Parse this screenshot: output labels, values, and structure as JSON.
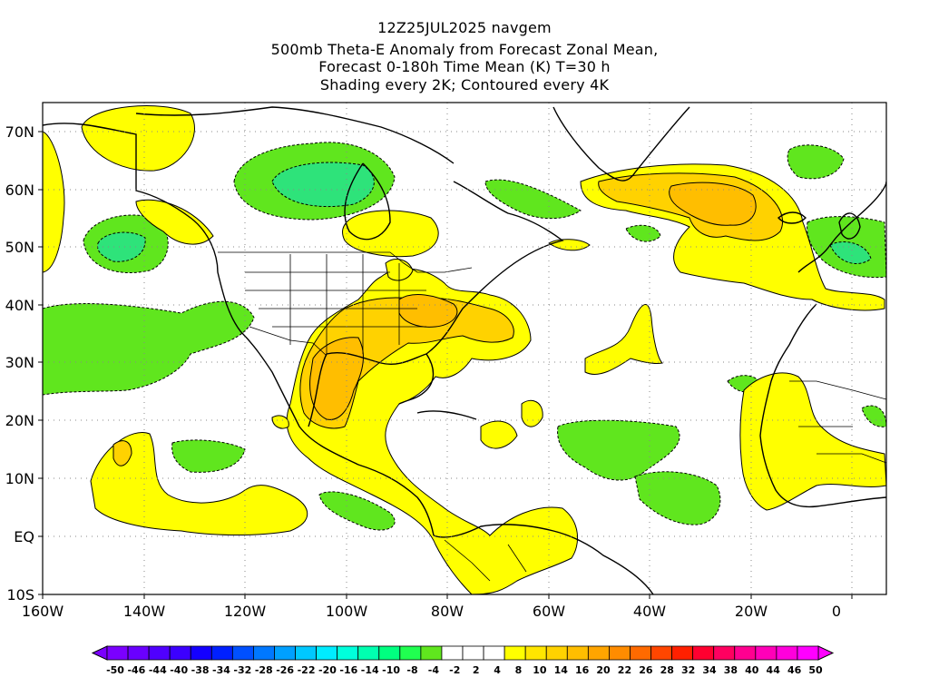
{
  "title": {
    "line1": "12Z25JUL2025 navgem",
    "line2": "500mb Theta-E Anomaly from Forecast Zonal Mean,",
    "line3": "Forecast 0-180h Time Mean (K) T=30 h",
    "line4": "Shading every 2K; Contoured every 4K"
  },
  "map": {
    "lat_labels": [
      "70N",
      "60N",
      "50N",
      "40N",
      "30N",
      "20N",
      "10N",
      "EQ",
      "10S"
    ],
    "lon_labels": [
      "160W",
      "140W",
      "120W",
      "100W",
      "80W",
      "60W",
      "40W",
      "20W",
      "0"
    ],
    "colors": {
      "positive_light": "#ffff00",
      "positive_mid": "#ffd200",
      "positive_high": "#ffa500",
      "negative_light": "#60e61e",
      "negative_mid": "#2ee37a",
      "coast": "#000000",
      "grid": "#888888"
    }
  },
  "colorbar": {
    "labels": [
      "-50",
      "-46",
      "-44",
      "-40",
      "-38",
      "-34",
      "-32",
      "-28",
      "-26",
      "-22",
      "-20",
      "-16",
      "-14",
      "-10",
      "-8",
      "-4",
      "-2",
      "2",
      "4",
      "8",
      "10",
      "14",
      "16",
      "20",
      "22",
      "26",
      "28",
      "32",
      "34",
      "38",
      "40",
      "44",
      "46",
      "50"
    ],
    "colors": [
      "#7b00ff",
      "#6a00ff",
      "#5000ff",
      "#3c00ff",
      "#1400ff",
      "#0020ff",
      "#0050ff",
      "#0078ff",
      "#00a0ff",
      "#00c8ff",
      "#00ecff",
      "#00ffdc",
      "#00ffb0",
      "#00ff80",
      "#20ff50",
      "#60e61e",
      "#ffffff",
      "#ffffff",
      "#ffffff",
      "#ffff00",
      "#ffe600",
      "#ffd200",
      "#ffbe00",
      "#ffa500",
      "#ff8c00",
      "#ff6a00",
      "#ff4600",
      "#ff2000",
      "#ff0030",
      "#ff0060",
      "#ff0090",
      "#ff00b8",
      "#ff00dc",
      "#ff00ff"
    ]
  }
}
